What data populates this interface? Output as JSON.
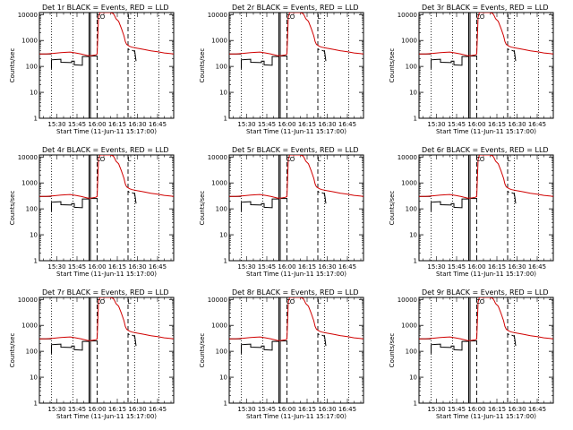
{
  "chart_data": {
    "type": "line",
    "title_template": "Det {n}r BLACK = Events, RED = LLD",
    "panels": [
      {
        "title": "Det 1r BLACK = Events, RED = LLD"
      },
      {
        "title": "Det 2r BLACK = Events, RED = LLD"
      },
      {
        "title": "Det 3r BLACK = Events, RED = LLD"
      },
      {
        "title": "Det 4r BLACK = Events, RED = LLD"
      },
      {
        "title": "Det 5r BLACK = Events, RED = LLD"
      },
      {
        "title": "Det 6r BLACK = Events, RED = LLD"
      },
      {
        "title": "Det 7r BLACK = Events, RED = LLD"
      },
      {
        "title": "Det 8r BLACK = Events, RED = LLD"
      },
      {
        "title": "Det 9r BLACK = Events, RED = LLD"
      }
    ],
    "xlabel": "Start Time (11-Jun-11 15:17:00)",
    "ylabel": "Counts/sec",
    "x_tick_labels": [
      "15:30",
      "15:45",
      "16:00",
      "16:15",
      "16:30",
      "16:45"
    ],
    "x_ticks_minutes": [
      30,
      45,
      60,
      75,
      90,
      105
    ],
    "xlim_minutes": [
      17,
      117
    ],
    "y_scale": "log",
    "ylim": [
      1,
      12000
    ],
    "y_tick_values": [
      1,
      10,
      100,
      1000,
      10000
    ],
    "y_tick_labels": [
      "1",
      "10",
      "100",
      "1000",
      "10000"
    ],
    "dotted_lines_minutes": [
      26,
      42,
      88,
      106
    ],
    "solid_lines_minutes": [
      54,
      55
    ],
    "dashed_lines_minutes": [
      60,
      83
    ],
    "series": [
      {
        "name": "Events",
        "color": "#000000",
        "segments": [
          {
            "x": [
              17,
              25,
              26
            ],
            "y": [
              300,
              300,
              300
            ]
          },
          {
            "x": [
              26,
              26,
              30,
              33,
              33,
              41,
              41,
              43,
              43,
              49,
              49,
              53
            ],
            "y": [
              80,
              180,
              185,
              190,
              145,
              140,
              160,
              160,
              115,
              110,
              240,
              240
            ]
          },
          {
            "x": [
              53,
              54
            ],
            "y": [
              240,
              240
            ]
          },
          {
            "x": [
              55.5,
              60
            ],
            "y": [
              250,
              250
            ]
          },
          {
            "x": [
              83,
              84
            ],
            "y": [
              480,
              430
            ]
          },
          {
            "x": [
              86,
              87,
              88,
              89
            ],
            "y": [
              420,
              400,
              380,
              160
            ]
          }
        ]
      },
      {
        "name": "LLD",
        "color": "#d00000",
        "x": [
          17,
          22,
          28,
          33,
          37,
          40,
          44,
          48,
          53,
          54,
          55.5,
          59,
          60,
          61,
          62,
          63,
          64,
          66,
          68,
          70,
          72,
          73,
          74,
          76,
          78,
          80,
          81,
          82,
          83,
          84,
          86,
          90,
          95,
          100,
          105,
          110,
          115,
          117
        ],
        "y": [
          300,
          300,
          320,
          340,
          350,
          360,
          330,
          300,
          260,
          260,
          260,
          280,
          300,
          8000,
          12000,
          12000,
          12000,
          12000,
          12000,
          12000,
          11000,
          9000,
          7000,
          5500,
          3000,
          1500,
          900,
          700,
          650,
          600,
          550,
          500,
          450,
          400,
          370,
          330,
          310,
          300
        ]
      }
    ],
    "annotations": [
      {
        "text": "C",
        "x_minutes": 61
      },
      {
        "text": "O",
        "x_minutes": 64
      },
      {
        "text": "L",
        "x_minutes": 84
      }
    ]
  }
}
